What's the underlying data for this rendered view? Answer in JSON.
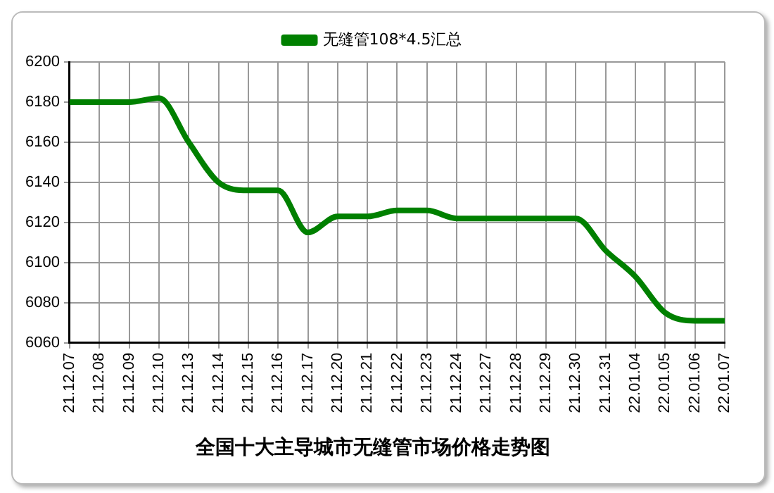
{
  "chart_data": {
    "type": "line",
    "title": "全国十大主导城市无缝管市场价格走势图",
    "categories": [
      "21.12.07",
      "21.12.08",
      "21.12.09",
      "21.12.10",
      "21.12.13",
      "21.12.14",
      "21.12.15",
      "21.12.16",
      "21.12.17",
      "21.12.20",
      "21.12.21",
      "21.12.22",
      "21.12.23",
      "21.12.24",
      "21.12.27",
      "21.12.28",
      "21.12.29",
      "21.12.30",
      "21.12.31",
      "22.01.04",
      "22.01.05",
      "22.01.06",
      "22.01.07"
    ],
    "series": [
      {
        "name": "无缝管108*4.5汇总",
        "color": "#008000",
        "values": [
          6180,
          6180,
          6180,
          6182,
          6160,
          6140,
          6136,
          6136,
          6115,
          6123,
          6123,
          6126,
          6126,
          6122,
          6122,
          6122,
          6122,
          6122,
          6106,
          6093,
          6075,
          6071,
          6071
        ]
      }
    ],
    "ylim": [
      6060,
      6200
    ],
    "yticks": [
      6060,
      6080,
      6100,
      6120,
      6140,
      6160,
      6180,
      6200
    ],
    "grid": true,
    "legend": "top",
    "marker": "none",
    "line_style": "solid"
  }
}
